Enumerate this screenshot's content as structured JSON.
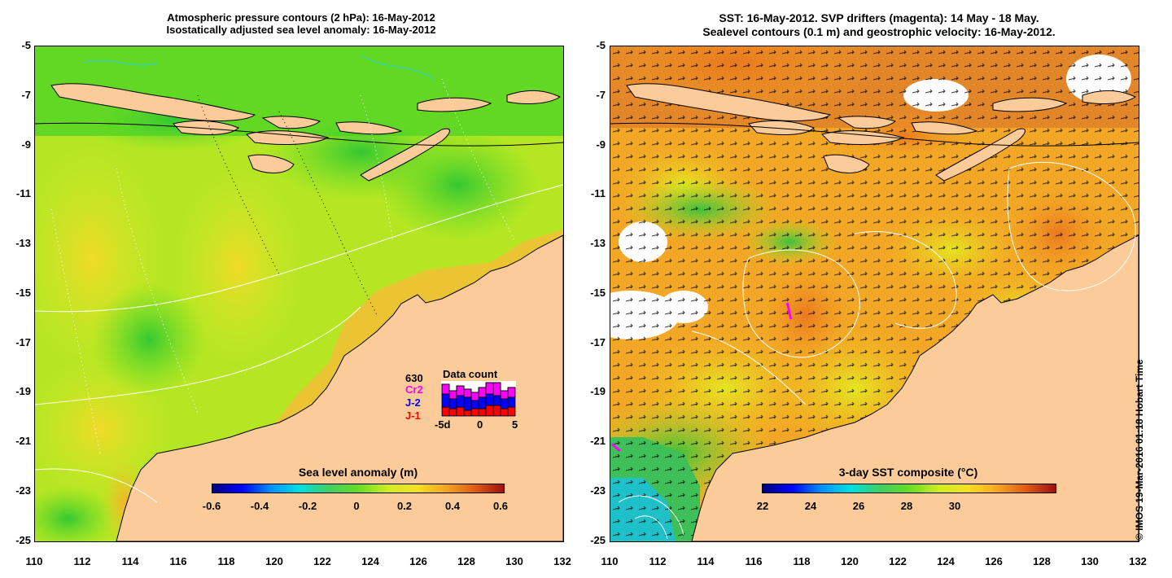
{
  "left_panel": {
    "title_line1": "Atmospheric pressure contours (2 hPa): 16-May-2012",
    "title_line2": "Isostatically adjusted sea level anomaly: 16-May-2012",
    "colorbar": {
      "title": "Sea level anomaly (m)",
      "labels": [
        "-0.6",
        "-0.4",
        "-0.2",
        "0",
        "0.2",
        "0.4",
        "0.6"
      ]
    },
    "data_count": {
      "title": "Data count",
      "total": "630",
      "series": [
        "Cr2",
        "J-2",
        "J-1"
      ],
      "series_colors": [
        "#ff00ff",
        "#0000ff",
        "#ff0000"
      ],
      "axis_labels": [
        "-5d",
        "0",
        "5"
      ]
    }
  },
  "right_panel": {
    "title_line1": "SST: 16-May-2012. SVP drifters (magenta): 14 May - 18 May.",
    "title_line2": "Sealevel contours (0.1 m) and geostrophic velocity: 16-May-2012.",
    "colorbar": {
      "title": "3-day SST composite (°C)",
      "labels": [
        "22",
        "24",
        "26",
        "28",
        "30"
      ]
    }
  },
  "axes": {
    "lat_labels": [
      "-5",
      "-7",
      "-9",
      "-11",
      "-13",
      "-15",
      "-17",
      "-19",
      "-21",
      "-23",
      "-25"
    ],
    "lon_labels": [
      "110",
      "112",
      "114",
      "116",
      "118",
      "120",
      "122",
      "124",
      "126",
      "128",
      "130",
      "132"
    ]
  },
  "credit": "© IMOS 19-Mar-2016 01:18 Hobart Time",
  "colors": {
    "land": "#fccb9a",
    "ocean_green": "#66dd22",
    "ocean_yellow": "#ccee22",
    "sst_orange": "#f5a623",
    "sst_red": "#c83c14"
  }
}
